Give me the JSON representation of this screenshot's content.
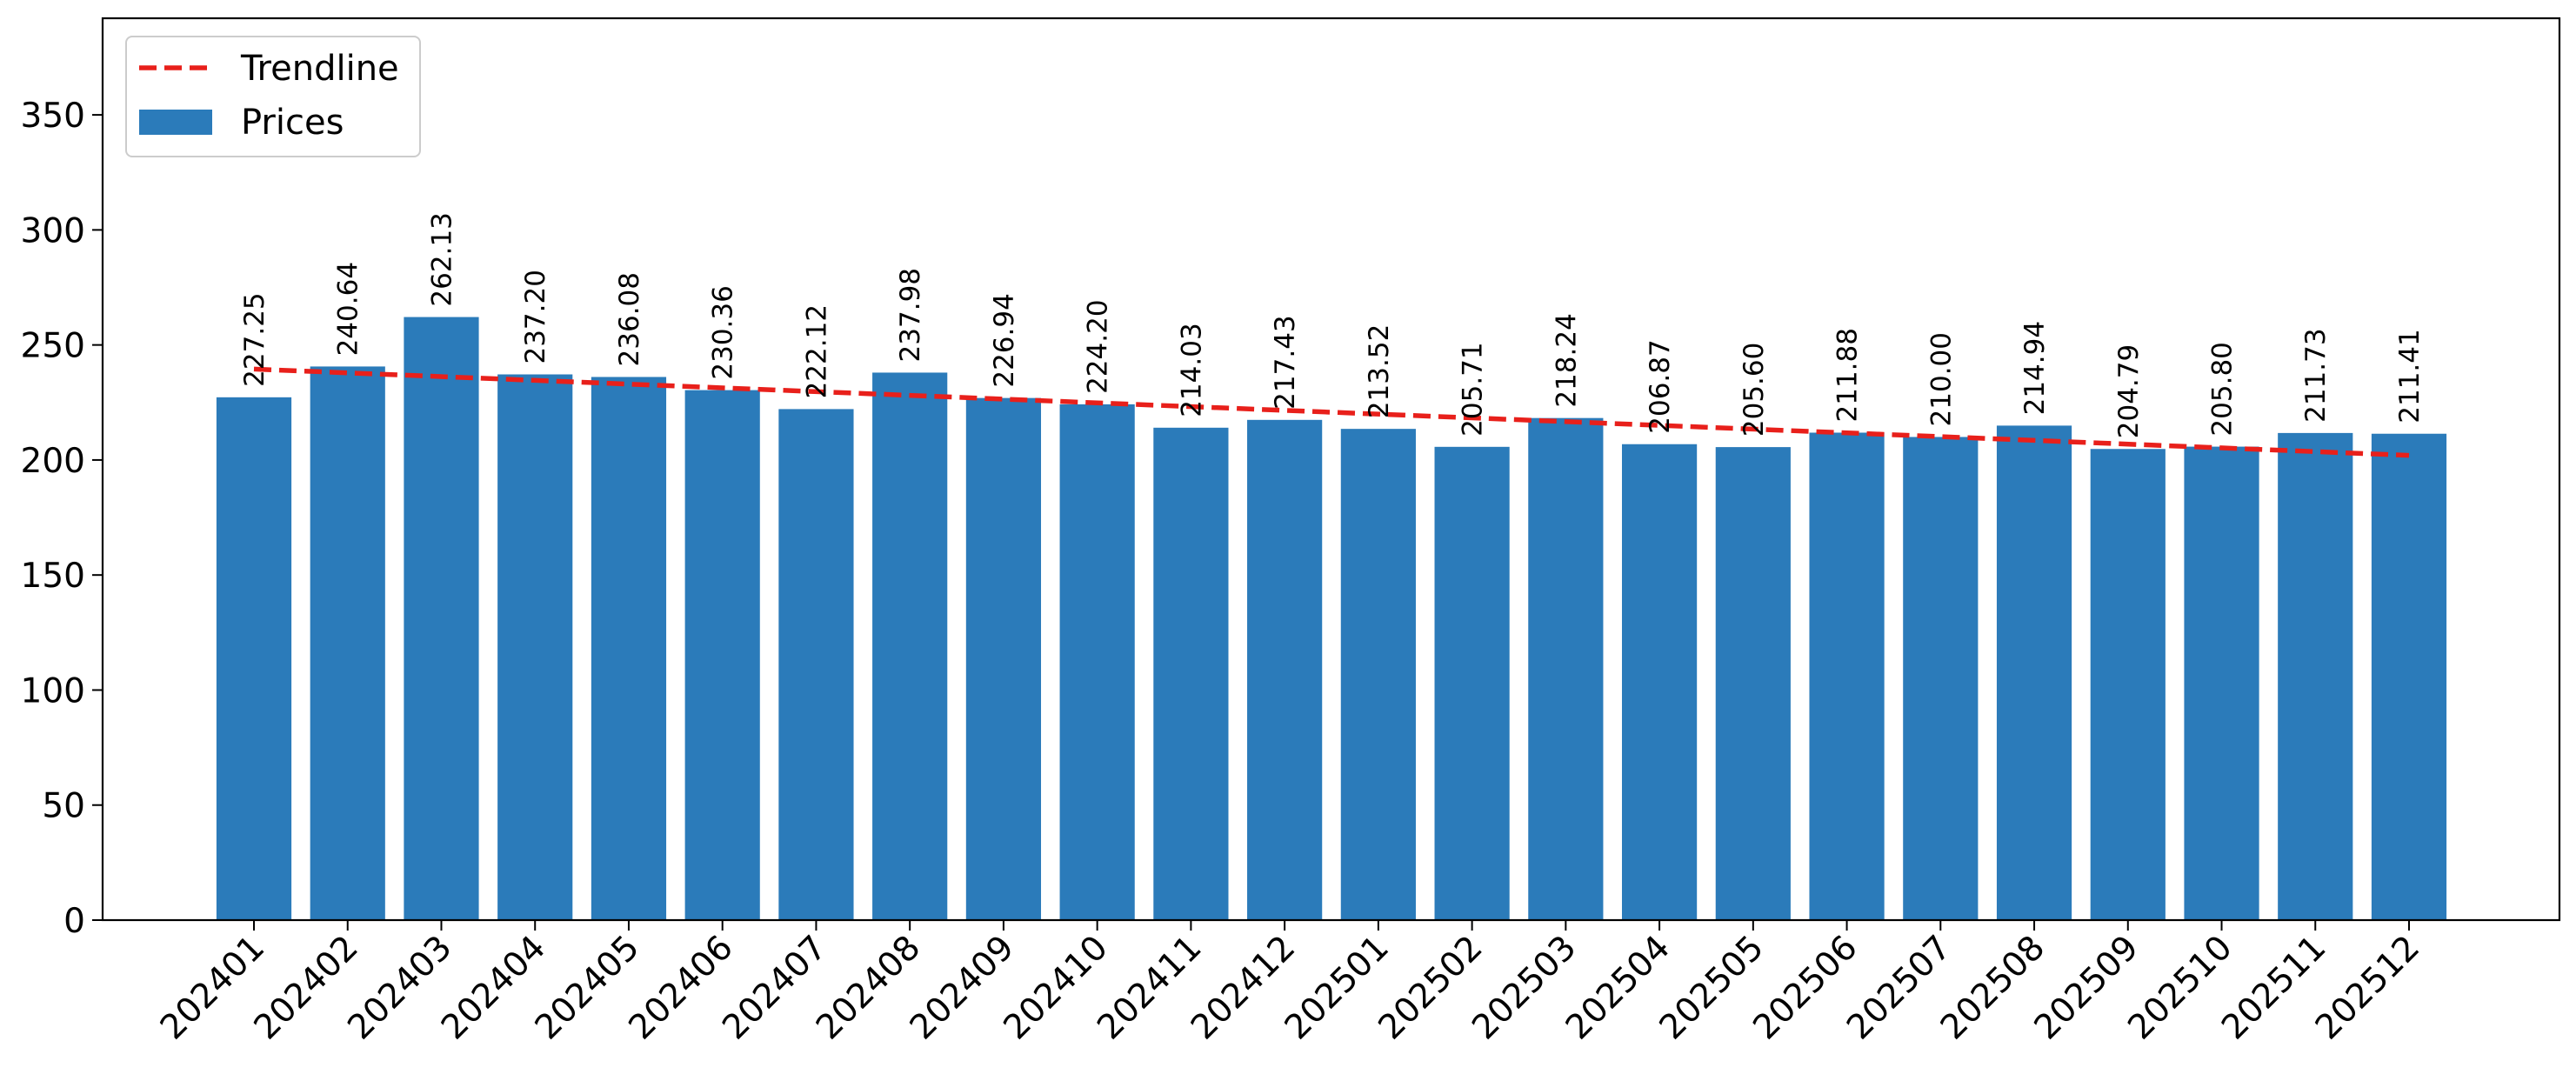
{
  "chart_data": {
    "type": "bar",
    "title": "",
    "xlabel": "",
    "ylabel": "",
    "categories": [
      "202401",
      "202402",
      "202403",
      "202404",
      "202405",
      "202406",
      "202407",
      "202408",
      "202409",
      "202410",
      "202411",
      "202412",
      "202501",
      "202502",
      "202503",
      "202504",
      "202505",
      "202506",
      "202507",
      "202508",
      "202509",
      "202510",
      "202511",
      "202512"
    ],
    "series": [
      {
        "name": "Prices",
        "kind": "bar",
        "color": "#2b7bba",
        "values": [
          227.25,
          240.64,
          262.13,
          237.2,
          236.08,
          230.36,
          222.12,
          237.98,
          226.94,
          224.2,
          214.03,
          217.43,
          213.52,
          205.71,
          218.24,
          206.87,
          205.6,
          211.88,
          210.0,
          214.94,
          204.79,
          205.8,
          211.73,
          211.41
        ],
        "data_labels": [
          "227.25",
          "240.64",
          "262.13",
          "237.20",
          "236.08",
          "230.36",
          "222.12",
          "237.98",
          "226.94",
          "224.20",
          "214.03",
          "217.43",
          "213.52",
          "205.71",
          "218.24",
          "206.87",
          "205.60",
          "211.88",
          "210.00",
          "214.94",
          "204.79",
          "205.80",
          "211.73",
          "211.41"
        ]
      },
      {
        "name": "Trendline",
        "kind": "line",
        "style": "dashed",
        "color": "#e8201b",
        "start": 239.5,
        "end": 202.0
      }
    ],
    "ylim": [
      0,
      392
    ],
    "yticks": [
      0,
      50,
      100,
      150,
      200,
      250,
      300,
      350
    ],
    "ytick_labels": [
      "0",
      "50",
      "100",
      "150",
      "200",
      "250",
      "300",
      "350"
    ],
    "xtick_rotation_deg": 45,
    "data_label_rotation_deg": 90,
    "grid": false,
    "legend": {
      "placement": "top-left",
      "entries": [
        "Trendline",
        "Prices"
      ]
    }
  }
}
